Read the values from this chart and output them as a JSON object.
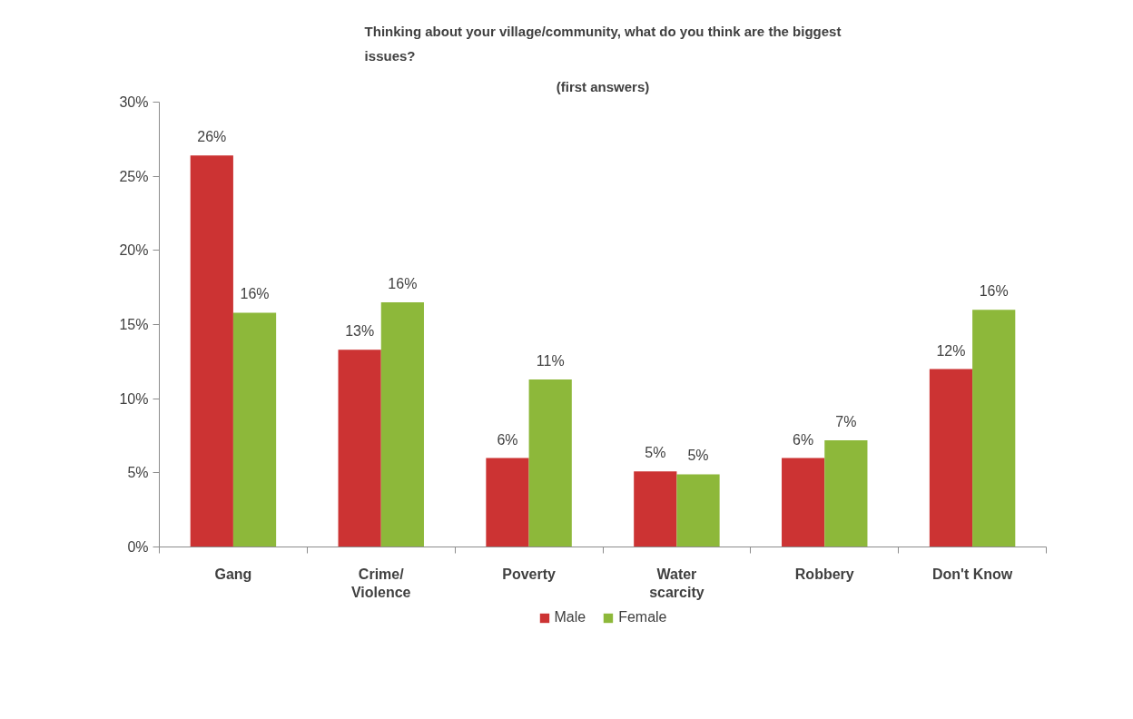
{
  "chart_data": {
    "type": "bar",
    "title": "Thinking about your village/community, what do you think are the biggest\nissues?",
    "subtitle": "(first answers)",
    "categories": [
      "Gang",
      "Crime/\nViolence",
      "Poverty",
      "Water\nscarcity",
      "Robbery",
      "Don't Know"
    ],
    "series": [
      {
        "name": "Male",
        "color": "#cc3333",
        "values": [
          26.4,
          13.3,
          6.0,
          5.1,
          6.0,
          12.0
        ],
        "value_labels": [
          "26%",
          "13%",
          "6%",
          "5%",
          "6%",
          "12%"
        ]
      },
      {
        "name": "Female",
        "color": "#8db83a",
        "values": [
          15.8,
          16.5,
          11.3,
          4.9,
          7.2,
          16.0
        ],
        "value_labels": [
          "16%",
          "16%",
          "11%",
          "5%",
          "7%",
          "16%"
        ]
      }
    ],
    "ylim": [
      0,
      30
    ],
    "yticks": [
      {
        "value": 0,
        "label": "0%"
      },
      {
        "value": 5,
        "label": "5%"
      },
      {
        "value": 10,
        "label": "10%"
      },
      {
        "value": 15,
        "label": "15%"
      },
      {
        "value": 20,
        "label": "20%"
      },
      {
        "value": 25,
        "label": "25%"
      },
      {
        "value": 30,
        "label": "30%"
      }
    ],
    "grid": false,
    "legend": "bottom"
  }
}
